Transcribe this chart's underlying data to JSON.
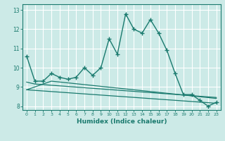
{
  "title": "",
  "xlabel": "Humidex (Indice chaleur)",
  "ylabel": "",
  "background_color": "#cceae7",
  "grid_color": "#ffffff",
  "line_color": "#1a7a6e",
  "xlim": [
    -0.5,
    23.5
  ],
  "ylim": [
    7.8,
    13.3
  ],
  "yticks": [
    8,
    9,
    10,
    11,
    12,
    13
  ],
  "xticks": [
    0,
    1,
    2,
    3,
    4,
    5,
    6,
    7,
    8,
    9,
    10,
    11,
    12,
    13,
    14,
    15,
    16,
    17,
    18,
    19,
    20,
    21,
    22,
    23
  ],
  "lines": [
    {
      "x": [
        0,
        1,
        2,
        3,
        4,
        5,
        6,
        7,
        8,
        9,
        10,
        11,
        12,
        13,
        14,
        15,
        16,
        17,
        18,
        19,
        20,
        21,
        22,
        23
      ],
      "y": [
        10.6,
        9.3,
        9.3,
        9.7,
        9.5,
        9.4,
        9.5,
        10.0,
        9.6,
        10.0,
        11.5,
        10.7,
        12.8,
        12.0,
        11.8,
        12.5,
        11.8,
        10.9,
        9.7,
        8.6,
        8.6,
        8.3,
        8.0,
        8.2
      ],
      "marker": "+"
    },
    {
      "x": [
        0,
        23
      ],
      "y": [
        8.85,
        8.15
      ],
      "marker": null
    },
    {
      "x": [
        0,
        3,
        23
      ],
      "y": [
        8.85,
        9.3,
        8.4
      ],
      "marker": null
    },
    {
      "x": [
        0,
        1,
        23
      ],
      "y": [
        9.25,
        9.15,
        8.45
      ],
      "marker": null
    }
  ]
}
